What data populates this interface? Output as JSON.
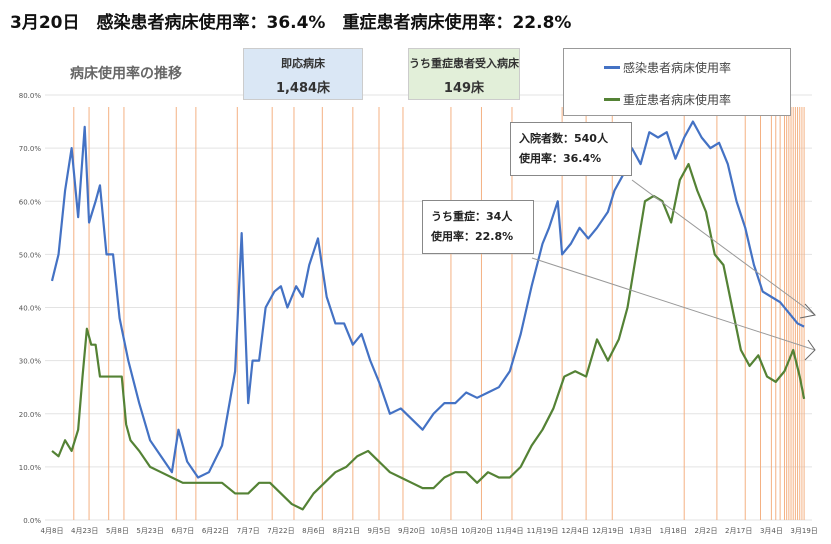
{
  "title": "3月20日　感染患者病床使用率：36.4%　重症患者病床使用率：22.8%",
  "info_boxes": [
    {
      "label": "即応病床",
      "value": "1,484床",
      "color": "#dae7f5"
    },
    {
      "label": "うち重症患者受入病床",
      "value": "149床",
      "color": "#e2efd9"
    }
  ],
  "annotations": [
    {
      "line1": "入院者数：540人",
      "line2": "使用率：36.4%"
    },
    {
      "line1": "うち重症：34人",
      "line2": "使用率：22.8%"
    }
  ],
  "chart_data": {
    "type": "line",
    "title": "病床使用率の推移",
    "xlabel": "",
    "ylabel": "",
    "ylim": [
      0,
      80
    ],
    "yticks": [
      "0.0%",
      "10.0%",
      "20.0%",
      "30.0%",
      "40.0%",
      "50.0%",
      "60.0%",
      "70.0%",
      "80.0%"
    ],
    "xlim_days": [
      0,
      346
    ],
    "xtick_labels": [
      "4月8日",
      "4月23日",
      "5月8日",
      "5月23日",
      "6月7日",
      "6月22日",
      "7月7日",
      "7月22日",
      "8月6日",
      "8月21日",
      "9月5日",
      "9月20日",
      "10月5日",
      "10月20日",
      "11月4日",
      "11月19日",
      "12月4日",
      "12月19日",
      "1月3日",
      "1月18日",
      "2月2日",
      "2月17日",
      "3月4日",
      "3月19日"
    ],
    "xtick_step_days": 15,
    "legend": "top-right",
    "grid": true,
    "series": [
      {
        "name": "感染患者病床使用率",
        "color": "#4472c4",
        "points": [
          [
            0,
            45
          ],
          [
            3,
            50
          ],
          [
            6,
            62
          ],
          [
            9,
            70
          ],
          [
            12,
            57
          ],
          [
            15,
            74
          ],
          [
            17,
            56
          ],
          [
            20,
            60
          ],
          [
            22,
            63
          ],
          [
            25,
            50
          ],
          [
            28,
            50
          ],
          [
            31,
            38
          ],
          [
            35,
            30
          ],
          [
            40,
            22
          ],
          [
            45,
            15
          ],
          [
            50,
            12
          ],
          [
            55,
            9
          ],
          [
            58,
            17
          ],
          [
            62,
            11
          ],
          [
            67,
            8
          ],
          [
            72,
            9
          ],
          [
            78,
            14
          ],
          [
            84,
            28
          ],
          [
            87,
            54
          ],
          [
            90,
            22
          ],
          [
            92,
            30
          ],
          [
            95,
            30
          ],
          [
            98,
            40
          ],
          [
            102,
            43
          ],
          [
            105,
            44
          ],
          [
            108,
            40
          ],
          [
            112,
            44
          ],
          [
            115,
            42
          ],
          [
            118,
            48
          ],
          [
            122,
            53
          ],
          [
            126,
            42
          ],
          [
            130,
            37
          ],
          [
            134,
            37
          ],
          [
            138,
            33
          ],
          [
            142,
            35
          ],
          [
            146,
            30
          ],
          [
            150,
            26
          ],
          [
            155,
            20
          ],
          [
            160,
            21
          ],
          [
            165,
            19
          ],
          [
            170,
            17
          ],
          [
            175,
            20
          ],
          [
            180,
            22
          ],
          [
            185,
            22
          ],
          [
            190,
            24
          ],
          [
            195,
            23
          ],
          [
            200,
            24
          ],
          [
            205,
            25
          ],
          [
            210,
            28
          ],
          [
            215,
            35
          ],
          [
            220,
            44
          ],
          [
            225,
            52
          ],
          [
            228,
            55
          ],
          [
            232,
            60
          ],
          [
            234,
            50
          ],
          [
            238,
            52
          ],
          [
            242,
            55
          ],
          [
            246,
            53
          ],
          [
            250,
            55
          ],
          [
            255,
            58
          ],
          [
            258,
            62
          ],
          [
            262,
            65
          ],
          [
            266,
            70
          ],
          [
            270,
            67
          ],
          [
            274,
            73
          ],
          [
            278,
            72
          ],
          [
            282,
            73
          ],
          [
            286,
            68
          ],
          [
            290,
            72
          ],
          [
            294,
            75
          ],
          [
            298,
            72
          ],
          [
            302,
            70
          ],
          [
            306,
            71
          ],
          [
            310,
            67
          ],
          [
            314,
            60
          ],
          [
            318,
            55
          ],
          [
            322,
            48
          ],
          [
            326,
            43
          ],
          [
            330,
            42
          ],
          [
            334,
            41
          ],
          [
            338,
            39
          ],
          [
            342,
            37
          ],
          [
            345,
            36.4
          ]
        ]
      },
      {
        "name": "重症患者病床使用率",
        "color": "#548235",
        "points": [
          [
            0,
            13
          ],
          [
            3,
            12
          ],
          [
            6,
            15
          ],
          [
            9,
            13
          ],
          [
            12,
            17
          ],
          [
            14,
            27
          ],
          [
            16,
            36
          ],
          [
            18,
            33
          ],
          [
            20,
            33
          ],
          [
            22,
            27
          ],
          [
            28,
            27
          ],
          [
            32,
            27
          ],
          [
            34,
            18
          ],
          [
            36,
            15
          ],
          [
            40,
            13
          ],
          [
            45,
            10
          ],
          [
            50,
            9
          ],
          [
            55,
            8
          ],
          [
            60,
            7
          ],
          [
            66,
            7
          ],
          [
            72,
            7
          ],
          [
            78,
            7
          ],
          [
            84,
            5
          ],
          [
            90,
            5
          ],
          [
            95,
            7
          ],
          [
            100,
            7
          ],
          [
            105,
            5
          ],
          [
            110,
            3
          ],
          [
            115,
            2
          ],
          [
            120,
            5
          ],
          [
            125,
            7
          ],
          [
            130,
            9
          ],
          [
            135,
            10
          ],
          [
            140,
            12
          ],
          [
            145,
            13
          ],
          [
            150,
            11
          ],
          [
            155,
            9
          ],
          [
            160,
            8
          ],
          [
            165,
            7
          ],
          [
            170,
            6
          ],
          [
            175,
            6
          ],
          [
            180,
            8
          ],
          [
            185,
            9
          ],
          [
            190,
            9
          ],
          [
            195,
            7
          ],
          [
            200,
            9
          ],
          [
            205,
            8
          ],
          [
            210,
            8
          ],
          [
            215,
            10
          ],
          [
            220,
            14
          ],
          [
            225,
            17
          ],
          [
            230,
            21
          ],
          [
            235,
            27
          ],
          [
            240,
            28
          ],
          [
            245,
            27
          ],
          [
            250,
            34
          ],
          [
            255,
            30
          ],
          [
            260,
            34
          ],
          [
            264,
            40
          ],
          [
            268,
            50
          ],
          [
            272,
            60
          ],
          [
            276,
            61
          ],
          [
            280,
            60
          ],
          [
            284,
            56
          ],
          [
            288,
            64
          ],
          [
            292,
            67
          ],
          [
            296,
            62
          ],
          [
            300,
            58
          ],
          [
            304,
            50
          ],
          [
            308,
            48
          ],
          [
            312,
            40
          ],
          [
            316,
            32
          ],
          [
            320,
            29
          ],
          [
            324,
            31
          ],
          [
            328,
            27
          ],
          [
            332,
            26
          ],
          [
            336,
            28
          ],
          [
            340,
            32
          ],
          [
            343,
            27
          ],
          [
            345,
            22.8
          ]
        ]
      }
    ],
    "event_lines_days": [
      10,
      17,
      26,
      33,
      57,
      66,
      85,
      101,
      111,
      124,
      138,
      150,
      161,
      183,
      197,
      211,
      234,
      245,
      257,
      290,
      305,
      318,
      325,
      330,
      332,
      334,
      336,
      337,
      338,
      339,
      340,
      341,
      342,
      343,
      344,
      345
    ],
    "event_line_color": "#f4b183"
  }
}
